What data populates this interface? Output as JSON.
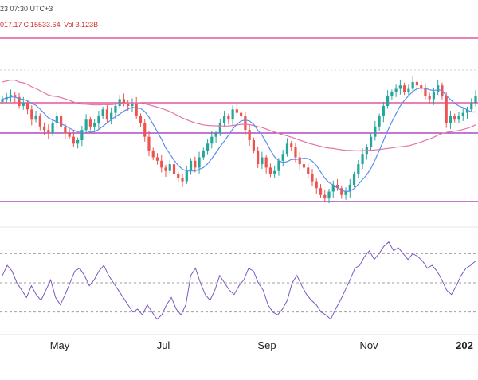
{
  "header": {
    "line1": "23 07:30 UTC+3",
    "ohlc_fragment": "017.17",
    "close_label": "C",
    "close_value": "15533.64",
    "vol_label": "Vol",
    "vol_value": "3.123B"
  },
  "colors": {
    "up": "#26a69a",
    "down": "#ef5350",
    "ma_fast": "#5b8def",
    "ma_slow": "#e573a8",
    "level_line": "#e0338a",
    "support_line": "#9c27b0",
    "rsi": "#7e57c2",
    "grid": "#d0d0d0"
  },
  "chart_data": [
    {
      "type": "candlestick",
      "x_ticks": [
        "May",
        "Jul",
        "Sep",
        "Nov",
        "202"
      ],
      "horizontal_levels": 4,
      "series": [
        {
          "name": "",
          "kind": "moving-average-fast"
        },
        {
          "name": "",
          "kind": "moving-average-slow"
        }
      ],
      "closes": [
        12950,
        12980,
        13010,
        12980,
        12850,
        12900,
        12800,
        12650,
        12700,
        12550,
        12500,
        12450,
        12600,
        12700,
        12550,
        12450,
        12400,
        12300,
        12350,
        12500,
        12650,
        12550,
        12600,
        12700,
        12800,
        12650,
        12750,
        12850,
        12950,
        12900,
        12850,
        12900,
        12700,
        12600,
        12400,
        12200,
        12100,
        12050,
        11950,
        11900,
        12000,
        11850,
        11800,
        11750,
        11900,
        12050,
        11950,
        12100,
        12200,
        12300,
        12400,
        12450,
        12600,
        12700,
        12650,
        12800,
        12750,
        12700,
        12500,
        12350,
        12200,
        12000,
        12100,
        11950,
        11850,
        11900,
        12050,
        12150,
        12300,
        12250,
        12100,
        12000,
        11950,
        11850,
        11750,
        11650,
        11550,
        11500,
        11600,
        11700,
        11650,
        11550,
        11600,
        11700,
        11850,
        12000,
        12150,
        12250,
        12400,
        12550,
        12700,
        12850,
        13000,
        13050,
        13100,
        13150,
        13050,
        13100,
        13200,
        13150,
        13100,
        13000,
        12950,
        13050,
        13150,
        13000,
        12600,
        12700,
        12650,
        12700,
        12750,
        12800,
        12900,
        13000
      ],
      "rsi": {
        "name": "",
        "levels": [
          70,
          50,
          30
        ],
        "values": [
          55,
          62,
          58,
          50,
          45,
          40,
          48,
          42,
          38,
          45,
          52,
          40,
          35,
          42,
          50,
          58,
          60,
          55,
          48,
          52,
          58,
          62,
          55,
          50,
          45,
          40,
          35,
          30,
          32,
          28,
          35,
          30,
          25,
          28,
          35,
          40,
          32,
          28,
          35,
          55,
          60,
          50,
          42,
          38,
          45,
          55,
          50,
          45,
          42,
          48,
          52,
          60,
          58,
          50,
          45,
          35,
          30,
          28,
          32,
          38,
          50,
          55,
          48,
          42,
          38,
          35,
          30,
          28,
          25,
          32,
          38,
          45,
          52,
          60,
          62,
          68,
          72,
          66,
          70,
          75,
          78,
          72,
          74,
          70,
          66,
          70,
          68,
          65,
          60,
          62,
          58,
          52,
          45,
          42,
          48,
          55,
          60,
          62,
          65
        ]
      }
    }
  ]
}
